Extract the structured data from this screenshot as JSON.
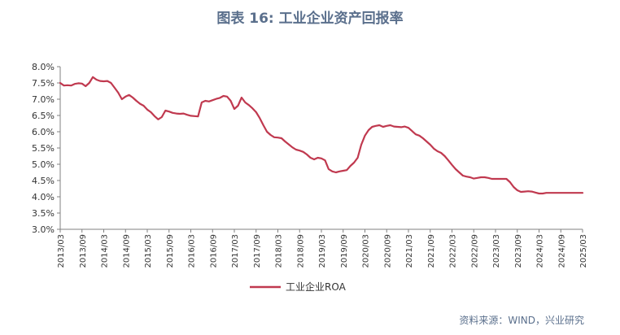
{
  "title": "图表 16: 工业企业资产回报率",
  "source": "资料来源：WIND，兴业研究",
  "colors": {
    "series": "#c0394f",
    "axis": "#808080",
    "title": "#5a6f8c"
  },
  "chart_data": {
    "type": "line",
    "title": "图表 16: 工业企业资产回报率",
    "xlabel": "",
    "ylabel": "",
    "ylim": [
      3.0,
      8.0
    ],
    "ystep": 0.5,
    "y_unit": "%",
    "grid": false,
    "legend": "bottom-center",
    "y_ticks": [
      "3.0%",
      "3.5%",
      "4.0%",
      "4.5%",
      "5.0%",
      "5.5%",
      "6.0%",
      "6.5%",
      "7.0%",
      "7.5%",
      "8.0%"
    ],
    "x_ticks": [
      "2013/03",
      "2013/09",
      "2014/03",
      "2014/09",
      "2015/03",
      "2015/09",
      "2016/03",
      "2016/09",
      "2017/03",
      "2017/09",
      "2018/03",
      "2018/09",
      "2019/03",
      "2019/09",
      "2020/03",
      "2020/09",
      "2021/03",
      "2021/09",
      "2022/03",
      "2022/09",
      "2023/03",
      "2023/09",
      "2024/03",
      "2024/09",
      "2025/03"
    ],
    "x_tick_months": [
      0,
      6,
      12,
      18,
      24,
      30,
      36,
      42,
      48,
      54,
      60,
      66,
      72,
      78,
      84,
      90,
      96,
      102,
      108,
      114,
      120,
      126,
      132,
      138,
      144
    ],
    "x_range_months": [
      0,
      144
    ],
    "series": [
      {
        "name": "工业企业ROA",
        "x_months": [
          0,
          1,
          2,
          3,
          4,
          5,
          6,
          7,
          8,
          9,
          10,
          11,
          12,
          13,
          14,
          15,
          16,
          17,
          18,
          19,
          20,
          21,
          22,
          23,
          24,
          25,
          26,
          27,
          28,
          29,
          30,
          31,
          32,
          33,
          34,
          35,
          36,
          37,
          38,
          39,
          40,
          41,
          42,
          43,
          44,
          45,
          46,
          47,
          48,
          49,
          50,
          51,
          52,
          53,
          54,
          55,
          56,
          57,
          58,
          59,
          60,
          61,
          62,
          63,
          64,
          65,
          66,
          67,
          68,
          69,
          70,
          71,
          72,
          73,
          74,
          75,
          76,
          77,
          78,
          79,
          80,
          81,
          82,
          83,
          84,
          85,
          86,
          87,
          88,
          89,
          90,
          91,
          92,
          93,
          94,
          95,
          96,
          97,
          98,
          99,
          100,
          101,
          102,
          103,
          104,
          105,
          106,
          107,
          108,
          109,
          110,
          111,
          112,
          113,
          114,
          115,
          116,
          117,
          118,
          119,
          120,
          121,
          122,
          123,
          124,
          125,
          126,
          127,
          128,
          129,
          130,
          131,
          132,
          133,
          134,
          135,
          136,
          137,
          138,
          139,
          140,
          141,
          142,
          143,
          144
        ],
        "values": [
          7.5,
          7.42,
          7.43,
          7.42,
          7.47,
          7.49,
          7.48,
          7.4,
          7.5,
          7.68,
          7.6,
          7.56,
          7.55,
          7.56,
          7.5,
          7.35,
          7.2,
          7.0,
          7.08,
          7.13,
          7.05,
          6.95,
          6.86,
          6.8,
          6.68,
          6.6,
          6.48,
          6.38,
          6.45,
          6.65,
          6.62,
          6.58,
          6.56,
          6.55,
          6.56,
          6.52,
          6.49,
          6.48,
          6.47,
          6.9,
          6.95,
          6.93,
          6.97,
          7.01,
          7.04,
          7.1,
          7.08,
          6.95,
          6.7,
          6.8,
          7.05,
          6.9,
          6.82,
          6.72,
          6.6,
          6.42,
          6.2,
          6.0,
          5.9,
          5.83,
          5.82,
          5.8,
          5.7,
          5.61,
          5.52,
          5.45,
          5.42,
          5.38,
          5.3,
          5.2,
          5.15,
          5.2,
          5.18,
          5.12,
          4.85,
          4.78,
          4.75,
          4.78,
          4.8,
          4.82,
          4.95,
          5.05,
          5.2,
          5.6,
          5.88,
          6.05,
          6.15,
          6.18,
          6.2,
          6.15,
          6.18,
          6.2,
          6.16,
          6.15,
          6.14,
          6.16,
          6.12,
          6.02,
          5.92,
          5.88,
          5.8,
          5.7,
          5.6,
          5.48,
          5.4,
          5.35,
          5.25,
          5.12,
          4.98,
          4.85,
          4.75,
          4.65,
          4.62,
          4.6,
          4.56,
          4.58,
          4.6,
          4.6,
          4.58,
          4.55,
          4.55,
          4.55,
          4.55,
          4.55,
          4.45,
          4.3,
          4.2,
          4.15,
          4.16,
          4.17,
          4.16,
          4.13,
          4.1,
          4.1,
          4.12,
          4.12,
          4.12,
          4.12,
          4.12,
          4.12,
          4.12,
          4.12,
          4.12,
          4.12,
          4.12
        ]
      }
    ]
  }
}
